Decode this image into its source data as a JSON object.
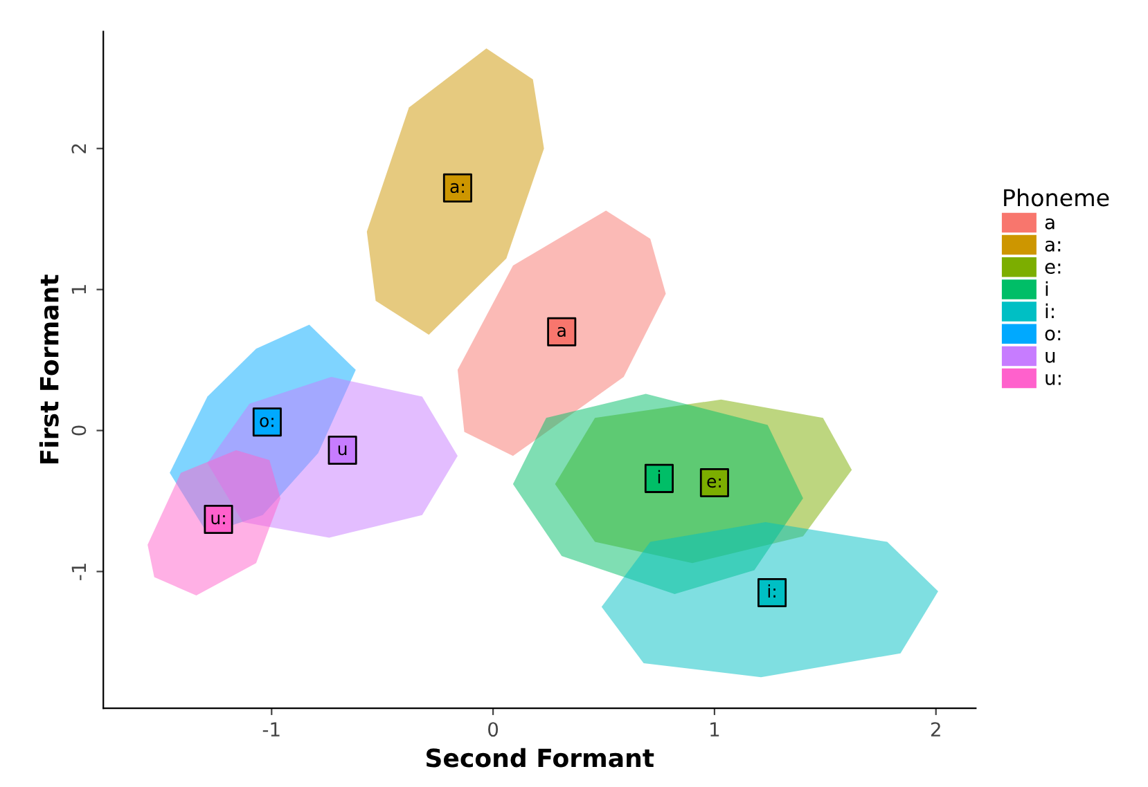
{
  "chart_data": {
    "type": "scatter",
    "xlabel": "Second Formant",
    "ylabel": "First Formant",
    "legend_title": "Phoneme",
    "legend": "right",
    "grid": false,
    "xlim": [
      -1.76,
      2.18
    ],
    "ylim": [
      -1.97,
      2.83
    ],
    "xticks": [
      -1,
      0,
      1,
      2
    ],
    "yticks": [
      -1,
      0,
      1,
      2
    ],
    "series": [
      {
        "type": "area",
        "color": "#F8766D",
        "x": [
          0.51,
          0.71,
          0.78,
          0.59,
          0.09,
          -0.13,
          -0.16,
          0.09
        ],
        "values": [
          1.56,
          1.36,
          0.97,
          0.38,
          -0.18,
          -0.01,
          0.43,
          1.17
        ]
      },
      {
        "type": "area",
        "color": "#CD9600",
        "x": [
          -0.03,
          0.18,
          0.23,
          0.06,
          -0.29,
          -0.53,
          -0.57,
          -0.38
        ],
        "values": [
          2.71,
          2.49,
          2.0,
          1.22,
          0.68,
          0.92,
          1.41,
          2.29
        ]
      },
      {
        "type": "area",
        "color": "#7CAE00",
        "x": [
          0.28,
          0.46,
          1.03,
          1.49,
          1.62,
          1.4,
          0.9,
          0.46
        ],
        "values": [
          -0.38,
          0.09,
          0.22,
          0.09,
          -0.28,
          -0.75,
          -0.94,
          -0.79
        ]
      },
      {
        "type": "area",
        "color": "#00BE67",
        "x": [
          0.09,
          0.24,
          0.69,
          1.24,
          1.4,
          1.18,
          0.82,
          0.31
        ],
        "values": [
          -0.38,
          0.09,
          0.26,
          0.04,
          -0.48,
          -0.99,
          -1.16,
          -0.89
        ]
      },
      {
        "type": "area",
        "color": "#00BFC4",
        "x": [
          0.49,
          0.71,
          1.23,
          1.78,
          2.01,
          1.84,
          1.21,
          0.68
        ],
        "values": [
          -1.25,
          -0.79,
          -0.65,
          -0.79,
          -1.14,
          -1.58,
          -1.75,
          -1.65
        ]
      },
      {
        "type": "area",
        "color": "#00A9FF",
        "x": [
          -0.83,
          -0.62,
          -0.79,
          -1.04,
          -1.29,
          -1.46,
          -1.29,
          -1.07
        ],
        "values": [
          0.75,
          0.43,
          -0.16,
          -0.6,
          -0.73,
          -0.3,
          0.24,
          0.58
        ]
      },
      {
        "type": "area",
        "color": "#C77CFF",
        "x": [
          -1.29,
          -1.1,
          -0.73,
          -0.32,
          -0.16,
          -0.32,
          -0.74,
          -1.13
        ],
        "values": [
          -0.23,
          0.19,
          0.38,
          0.24,
          -0.18,
          -0.6,
          -0.76,
          -0.65
        ]
      },
      {
        "type": "area",
        "color": "#FF61CC",
        "x": [
          -1.16,
          -1.01,
          -0.96,
          -1.07,
          -1.34,
          -1.53,
          -1.56,
          -1.41
        ],
        "values": [
          -0.14,
          -0.21,
          -0.48,
          -0.94,
          -1.17,
          -1.04,
          -0.81,
          -0.3
        ]
      },
      {
        "name": "a",
        "marker": "square",
        "color": "#F8766D",
        "x": [
          0.31
        ],
        "values": [
          0.7
        ]
      },
      {
        "name": "a:",
        "marker": "square",
        "color": "#CD9600",
        "x": [
          -0.16
        ],
        "values": [
          1.72
        ]
      },
      {
        "name": "e:",
        "marker": "square",
        "color": "#7CAE00",
        "x": [
          1.0
        ],
        "values": [
          -0.37
        ]
      },
      {
        "name": "i",
        "marker": "square",
        "color": "#00BE67",
        "x": [
          0.75
        ],
        "values": [
          -0.34
        ]
      },
      {
        "name": "i:",
        "marker": "square",
        "color": "#00BFC4",
        "x": [
          1.26
        ],
        "values": [
          -1.15
        ]
      },
      {
        "name": "o:",
        "marker": "square",
        "color": "#00A9FF",
        "x": [
          -1.02
        ],
        "values": [
          0.06
        ]
      },
      {
        "name": "u",
        "marker": "square",
        "color": "#C77CFF",
        "x": [
          -0.68
        ],
        "values": [
          -0.14
        ]
      },
      {
        "name": "u:",
        "marker": "square",
        "color": "#FF61CC",
        "x": [
          -1.24
        ],
        "values": [
          -0.63
        ]
      }
    ],
    "annotations": [
      {
        "text": "a",
        "x": 0.31,
        "y": 0.7
      },
      {
        "text": "a:",
        "x": -0.16,
        "y": 1.72
      },
      {
        "text": "e:",
        "x": 1.0,
        "y": -0.37
      },
      {
        "text": "i",
        "x": 0.75,
        "y": -0.34
      },
      {
        "text": "i:",
        "x": 1.26,
        "y": -1.15
      },
      {
        "text": "o:",
        "x": -1.02,
        "y": 0.06
      },
      {
        "text": "u",
        "x": -0.68,
        "y": -0.14
      },
      {
        "text": "u:",
        "x": -1.24,
        "y": -0.63
      }
    ]
  }
}
